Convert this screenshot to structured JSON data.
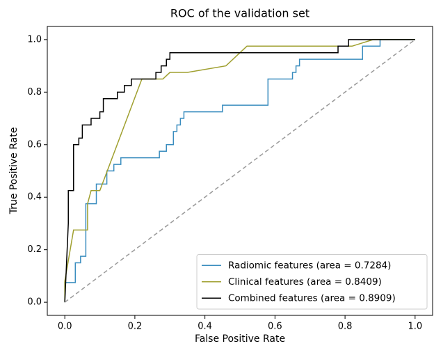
{
  "chart_data": {
    "type": "line",
    "title": "ROC of the validation set",
    "x_label": "False Positive Rate",
    "y_label": "True Positive Rate",
    "xlim": [
      -0.05,
      1.05
    ],
    "ylim": [
      -0.05,
      1.05
    ],
    "xticks": [
      {
        "value": 0,
        "label": "0.0"
      },
      0.2,
      0.4,
      0.6,
      0.8,
      {
        "value": 1,
        "label": "1.0"
      }
    ],
    "yticks": [
      {
        "value": 0,
        "label": "0.0"
      },
      0.2,
      0.4,
      0.6,
      0.8,
      {
        "value": 1,
        "label": "1.0"
      }
    ],
    "legend_position": "lower right",
    "grid": false,
    "series": [
      {
        "name": "Radiomic features (area = 0.7284)",
        "color": "#3a8dbf",
        "x": [
          0,
          0,
          0.03,
          0.03,
          0.045,
          0.045,
          0.06,
          0.06,
          0.09,
          0.09,
          0.12,
          0.12,
          0.14,
          0.14,
          0.16,
          0.16,
          0.27,
          0.27,
          0.29,
          0.29,
          0.31,
          0.31,
          0.32,
          0.32,
          0.33,
          0.33,
          0.34,
          0.34,
          0.45,
          0.45,
          0.58,
          0.58,
          0.65,
          0.65,
          0.66,
          0.66,
          0.67,
          0.67,
          0.85,
          0.85,
          0.9,
          0.9,
          1
        ],
        "values": [
          0,
          0.075,
          0.075,
          0.15,
          0.15,
          0.175,
          0.175,
          0.375,
          0.375,
          0.45,
          0.45,
          0.5,
          0.5,
          0.525,
          0.525,
          0.55,
          0.55,
          0.575,
          0.575,
          0.6,
          0.6,
          0.65,
          0.65,
          0.675,
          0.675,
          0.7,
          0.7,
          0.725,
          0.725,
          0.75,
          0.75,
          0.85,
          0.85,
          0.875,
          0.875,
          0.9,
          0.9,
          0.925,
          0.925,
          0.975,
          0.975,
          1,
          1
        ]
      },
      {
        "name": "Clinical features (area = 0.8409)",
        "color": "#a0a030",
        "x": [
          0,
          0,
          0.025,
          0.065,
          0.065,
          0.075,
          0.1,
          0.22,
          0.28,
          0.3,
          0.35,
          0.46,
          0.52,
          0.82,
          0.88,
          1
        ],
        "values": [
          0,
          0.08,
          0.275,
          0.275,
          0.375,
          0.425,
          0.425,
          0.85,
          0.85,
          0.875,
          0.875,
          0.9,
          0.975,
          0.975,
          1,
          1
        ]
      },
      {
        "name": "Combined features (area = 0.8909)",
        "color": "#000000",
        "x": [
          0,
          0.01,
          0.01,
          0.025,
          0.025,
          0.04,
          0.04,
          0.05,
          0.05,
          0.075,
          0.075,
          0.1,
          0.1,
          0.11,
          0.11,
          0.15,
          0.15,
          0.17,
          0.17,
          0.19,
          0.19,
          0.26,
          0.26,
          0.275,
          0.275,
          0.29,
          0.29,
          0.3,
          0.3,
          0.78,
          0.78,
          0.81,
          0.81,
          1
        ],
        "values": [
          0,
          0.3,
          0.425,
          0.425,
          0.6,
          0.6,
          0.625,
          0.625,
          0.675,
          0.675,
          0.7,
          0.7,
          0.725,
          0.725,
          0.775,
          0.775,
          0.8,
          0.8,
          0.825,
          0.825,
          0.85,
          0.85,
          0.875,
          0.875,
          0.9,
          0.9,
          0.925,
          0.925,
          0.95,
          0.95,
          0.975,
          0.975,
          1,
          1
        ]
      },
      {
        "color": "#999999",
        "dashed": true,
        "x": [
          0,
          1
        ],
        "values": [
          0,
          1
        ]
      }
    ]
  }
}
